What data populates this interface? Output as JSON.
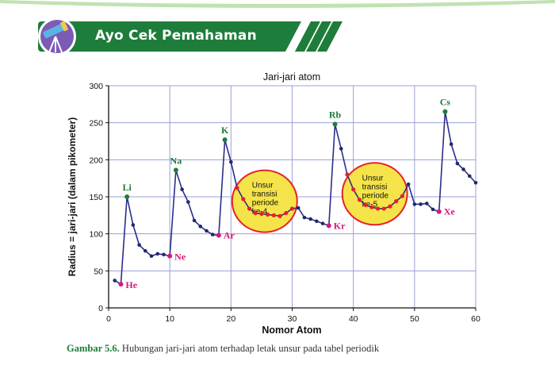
{
  "banner": {
    "title": "Ayo Cek Pemahaman"
  },
  "caption": {
    "figure": "Gambar 5.6.",
    "text": " Hubungan jari-jari atom terhadap letak unsur pada tabel periodik"
  },
  "colors": {
    "line": "#2b2d8c",
    "marker": "#1f2a6b",
    "pink": "#d6197a",
    "red": "#e8202a",
    "label_green": "#1b7a3a",
    "ellipse_fill": "#f4e44a",
    "ellipse_stroke": "#e8202a",
    "grid": "#9aa0d8"
  },
  "chart_data": {
    "type": "line",
    "title": "Jari-jari atom",
    "xlabel": "Nomor Atom",
    "ylabel": "Radius = jari-jari (dalam pikometer)",
    "xlim": [
      0,
      60
    ],
    "ylim": [
      0,
      300
    ],
    "xticks": [
      0,
      10,
      20,
      30,
      40,
      50,
      60
    ],
    "yticks": [
      0,
      50,
      100,
      150,
      200,
      250,
      300
    ],
    "grid": true,
    "series": [
      {
        "x": [
          1,
          2,
          3,
          4,
          5,
          6,
          7,
          8,
          9,
          10,
          11,
          12,
          13,
          14,
          15,
          16,
          17,
          18,
          19,
          20,
          21,
          22,
          23,
          24,
          25,
          26,
          27,
          28,
          29,
          30,
          31,
          32,
          33,
          34,
          35,
          36,
          37,
          38,
          39,
          40,
          41,
          42,
          43,
          44,
          45,
          46,
          47,
          48,
          49,
          50,
          51,
          52,
          53,
          54,
          55,
          56,
          57,
          58,
          59,
          60
        ],
        "y": [
          37,
          32,
          150,
          112,
          85,
          77,
          70,
          73,
          72,
          70,
          186,
          160,
          143,
          118,
          110,
          104,
          99,
          98,
          227,
          197,
          162,
          147,
          134,
          128,
          127,
          126,
          125,
          124,
          128,
          134,
          135,
          122,
          120,
          117,
          114,
          111,
          248,
          215,
          180,
          160,
          146,
          139,
          136,
          134,
          134,
          137,
          144,
          151,
          167,
          140,
          140,
          141,
          133,
          130,
          265,
          221,
          195,
          187,
          178,
          169
        ],
        "highlight_noble": [
          2,
          10,
          18,
          36,
          54
        ],
        "highlight_transition": [
          21,
          22,
          23,
          24,
          25,
          26,
          27,
          28,
          29,
          30,
          39,
          40,
          41,
          42,
          43,
          44,
          45,
          46,
          47,
          48
        ]
      }
    ],
    "element_labels": [
      {
        "text": "He",
        "x": 2,
        "y": 32
      },
      {
        "text": "Li",
        "x": 3,
        "y": 150
      },
      {
        "text": "Na",
        "x": 11,
        "y": 186
      },
      {
        "text": "Ne",
        "x": 10,
        "y": 70
      },
      {
        "text": "K",
        "x": 19,
        "y": 227
      },
      {
        "text": "Ar",
        "x": 18,
        "y": 98
      },
      {
        "text": "Rb",
        "x": 37,
        "y": 248
      },
      {
        "text": "Kr",
        "x": 36,
        "y": 111
      },
      {
        "text": "Cs",
        "x": 55,
        "y": 265
      },
      {
        "text": "Xe",
        "x": 54,
        "y": 130
      }
    ],
    "annotations": [
      {
        "lines": [
          "Unsur",
          "transisi",
          "periode",
          "ke-4"
        ],
        "cx": 25.5,
        "cy": 144
      },
      {
        "lines": [
          "Unsur",
          "transisi",
          "periode",
          "ke-5"
        ],
        "cx": 43.5,
        "cy": 154
      }
    ]
  }
}
